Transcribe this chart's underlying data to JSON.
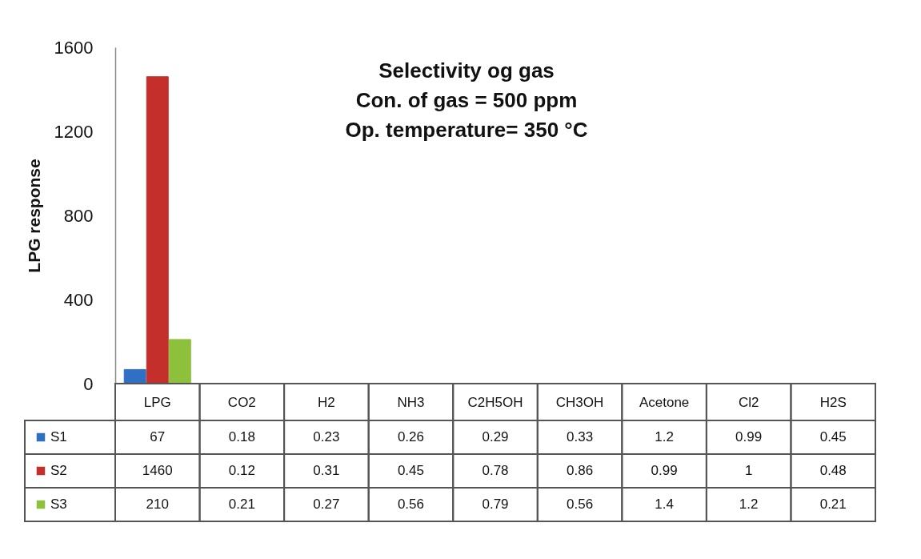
{
  "chart_data": {
    "type": "bar",
    "title": "Selectivity og gas\nCon. of gas = 500 ppm\nOp. temperature= 350 °C",
    "ylabel": "LPG response",
    "categories": [
      "LPG",
      "CO2",
      "H2",
      "NH3",
      "C2H5OH",
      "CH3OH",
      "Acetone",
      "Cl2",
      "H2S"
    ],
    "series": [
      {
        "name": "S1",
        "color": "#2f6fc4",
        "values": [
          67,
          0.18,
          0.23,
          0.26,
          0.29,
          0.33,
          1.2,
          0.99,
          0.45
        ]
      },
      {
        "name": "S2",
        "color": "#c42f2b",
        "values": [
          1460,
          0.12,
          0.31,
          0.45,
          0.78,
          0.86,
          0.99,
          1,
          0.48
        ]
      },
      {
        "name": "S3",
        "color": "#8dc13c",
        "values": [
          210,
          0.21,
          0.27,
          0.56,
          0.79,
          0.56,
          1.4,
          1.2,
          0.21
        ]
      }
    ],
    "ylim": [
      0,
      1600
    ],
    "yticks": [
      0,
      400,
      800,
      1200,
      1600
    ],
    "data_labels": true,
    "legend": "bottom"
  }
}
